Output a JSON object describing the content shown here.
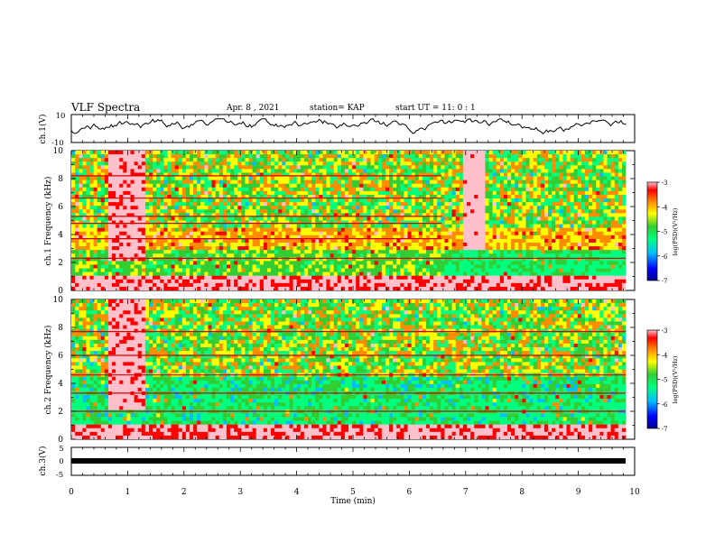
{
  "header": {
    "title": "VLF Spectra",
    "date": "Apr. 8  , 2021",
    "station": "station= KAP",
    "start": "start UT =  11: 0  : 1"
  },
  "chart_data": [
    {
      "type": "line",
      "panel": "ch1-waveform",
      "ylabel": "ch.1(V)",
      "ylim": [
        -10,
        10
      ],
      "yticks": [
        "10",
        "-10"
      ],
      "xlim": [
        0,
        10
      ],
      "description_of_values": "noisy waveform fluctuating roughly between -4 and 7 V",
      "values_sample": [
        -2,
        1,
        -1,
        3,
        2,
        5,
        0,
        4,
        1,
        2,
        -1,
        3,
        5,
        2,
        1,
        4,
        0,
        3,
        2,
        6,
        1,
        3,
        -1,
        2,
        4,
        1,
        3,
        0,
        2,
        5
      ]
    },
    {
      "type": "heatmap",
      "panel": "ch1-spectrogram",
      "ylabel": "ch.1 Frequency (kHz)",
      "ylim": [
        0,
        10
      ],
      "yticks": [
        "0",
        "2",
        "4",
        "6",
        "8",
        "10"
      ],
      "xlim": [
        0,
        10
      ],
      "colorbar": {
        "label": "log(PSD)(V²/Hz)",
        "range": [
          -7,
          -3
        ],
        "ticks": [
          "-3",
          "-4",
          "-5",
          "-6",
          "-7"
        ]
      }
    },
    {
      "type": "heatmap",
      "panel": "ch2-spectrogram",
      "ylabel": "ch.2 Frequency (kHz)",
      "ylim": [
        0,
        10
      ],
      "yticks": [
        "0",
        "2",
        "4",
        "6",
        "8",
        "10"
      ],
      "xlim": [
        0,
        10
      ],
      "colorbar": {
        "label": "log(PSD)(V²/Hz)",
        "range": [
          -7,
          -3
        ],
        "ticks": [
          "-3",
          "-4",
          "-5",
          "-6",
          "-7"
        ]
      }
    },
    {
      "type": "line",
      "panel": "ch3-waveform",
      "ylabel": "ch.3(V)",
      "ylim": [
        -5,
        5
      ],
      "yticks": [
        "5",
        "0",
        "-5"
      ],
      "xlim": [
        0,
        10
      ],
      "values_sample": [
        -1,
        -1,
        -1,
        -1,
        -1,
        -1,
        -1,
        -1,
        -1,
        -1
      ]
    }
  ],
  "xaxis": {
    "label": "Time  (min)",
    "ticks": [
      "0",
      "1",
      "2",
      "3",
      "4",
      "5",
      "6",
      "7",
      "8",
      "9",
      "10"
    ]
  },
  "colors": {
    "colormap": [
      "#00008b",
      "#0000ff",
      "#00bfff",
      "#00ff7f",
      "#32cd32",
      "#ffff00",
      "#ff8c00",
      "#ff0000",
      "#ffc0cb"
    ]
  }
}
